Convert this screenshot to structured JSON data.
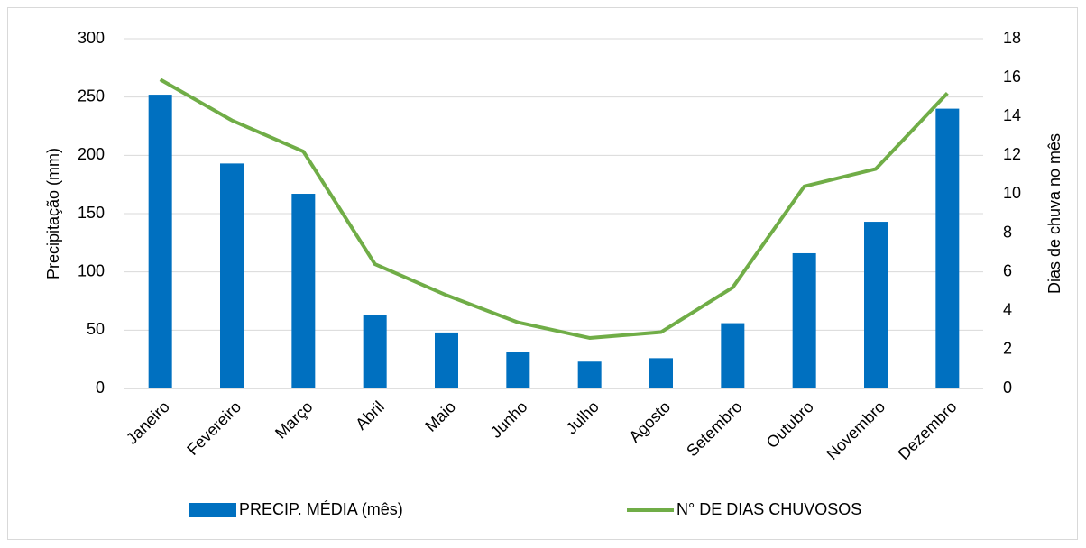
{
  "chart_data": {
    "type": "bar_line",
    "categories": [
      "Janeiro",
      "Fevereiro",
      "Março",
      "Abril",
      "Maio",
      "Junho",
      "Julho",
      "Agosto",
      "Setembro",
      "Outubro",
      "Novembro",
      "Dezembro"
    ],
    "series": [
      {
        "name": "PRECIP. MÉDIA (mês)",
        "color": "#0070c0",
        "type": "bar",
        "axis": "y",
        "values": [
          252,
          193,
          167,
          63,
          48,
          31,
          23,
          26,
          56,
          116,
          143,
          240
        ]
      },
      {
        "name": "N° DE DIAS CHUVOSOS",
        "color": "#70ad47",
        "type": "line",
        "axis": "y2",
        "values": [
          15.9,
          13.8,
          12.2,
          6.4,
          4.8,
          3.4,
          2.6,
          2.9,
          5.2,
          10.4,
          11.3,
          15.2
        ]
      }
    ],
    "ylabel": "Precipitação (mm)",
    "y2label": "Dias de chuva no mês",
    "ylim": [
      0,
      300
    ],
    "yticks": [
      0,
      50,
      100,
      150,
      200,
      250,
      300
    ],
    "y2lim": [
      0,
      18
    ],
    "y2ticks": [
      0,
      2,
      4,
      6,
      8,
      10,
      12,
      14,
      16,
      18
    ],
    "grid": true,
    "legend": "bottom"
  }
}
